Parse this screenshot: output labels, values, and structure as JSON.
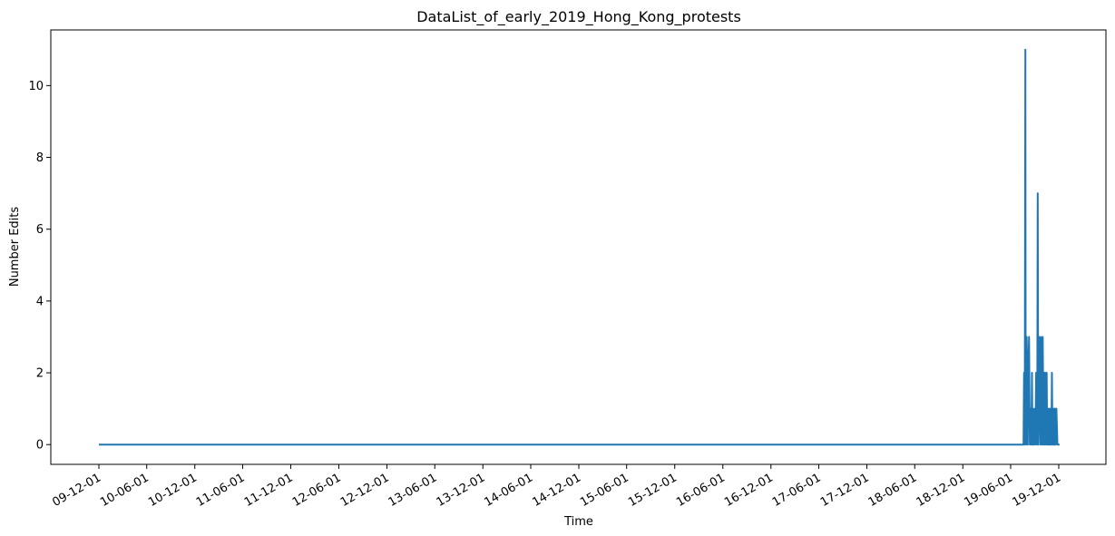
{
  "chart_data": {
    "type": "line",
    "title": "DataList_of_early_2019_Hong_Kong_protests",
    "xlabel": "Time",
    "ylabel": "Number Edits",
    "x_ticks": [
      "09-12-01",
      "10-06-01",
      "10-12-01",
      "11-06-01",
      "11-12-01",
      "12-06-01",
      "12-12-01",
      "13-06-01",
      "13-12-01",
      "14-06-01",
      "14-12-01",
      "15-06-01",
      "15-12-01",
      "16-06-01",
      "16-12-01",
      "17-06-01",
      "17-12-01",
      "18-06-01",
      "18-12-01",
      "19-06-01",
      "19-12-01"
    ],
    "y_ticks": [
      "0",
      "2",
      "4",
      "6",
      "8",
      "10"
    ],
    "ylim": [
      -0.55,
      11.55
    ],
    "grid": false,
    "line_color": "#1f77b4",
    "series": [
      {
        "x": [
          "2009-12-01",
          "2019-07-20",
          "2019-07-22",
          "2019-07-24",
          "2019-07-25",
          "2019-07-27",
          "2019-07-28",
          "2019-07-30",
          "2019-08-01",
          "2019-08-03",
          "2019-08-05",
          "2019-08-07",
          "2019-08-10",
          "2019-08-13",
          "2019-08-16",
          "2019-08-19",
          "2019-08-21",
          "2019-08-23",
          "2019-08-25",
          "2019-08-28",
          "2019-09-01",
          "2019-09-03",
          "2019-09-06",
          "2019-09-08",
          "2019-09-10",
          "2019-09-12",
          "2019-09-14",
          "2019-09-17",
          "2019-09-20",
          "2019-09-22",
          "2019-09-24",
          "2019-09-26",
          "2019-09-28",
          "2019-10-01",
          "2019-10-04",
          "2019-10-06",
          "2019-10-08",
          "2019-10-10",
          "2019-10-12",
          "2019-10-14",
          "2019-10-16",
          "2019-10-18",
          "2019-10-20",
          "2019-10-22",
          "2019-10-24",
          "2019-10-26",
          "2019-10-28",
          "2019-10-30",
          "2019-11-01",
          "2019-11-03",
          "2019-11-05",
          "2019-11-07",
          "2019-11-09",
          "2019-11-11",
          "2019-11-13",
          "2019-11-15",
          "2019-11-17",
          "2019-11-19",
          "2019-11-22",
          "2019-11-26",
          "2019-11-30",
          "2019-12-04"
        ],
        "y": [
          0,
          0,
          2,
          0,
          2,
          11,
          2,
          0,
          3,
          2,
          0,
          2,
          3,
          0,
          1,
          0,
          2,
          0,
          1,
          0,
          1,
          0,
          2,
          1,
          0,
          7,
          0,
          3,
          1,
          0,
          3,
          2,
          0,
          3,
          0,
          2,
          0,
          2,
          1,
          0,
          2,
          0,
          1,
          0,
          1,
          0,
          1,
          0,
          1,
          0,
          2,
          0,
          1,
          0,
          1,
          0,
          1,
          0,
          1,
          0,
          0,
          0
        ]
      }
    ]
  }
}
